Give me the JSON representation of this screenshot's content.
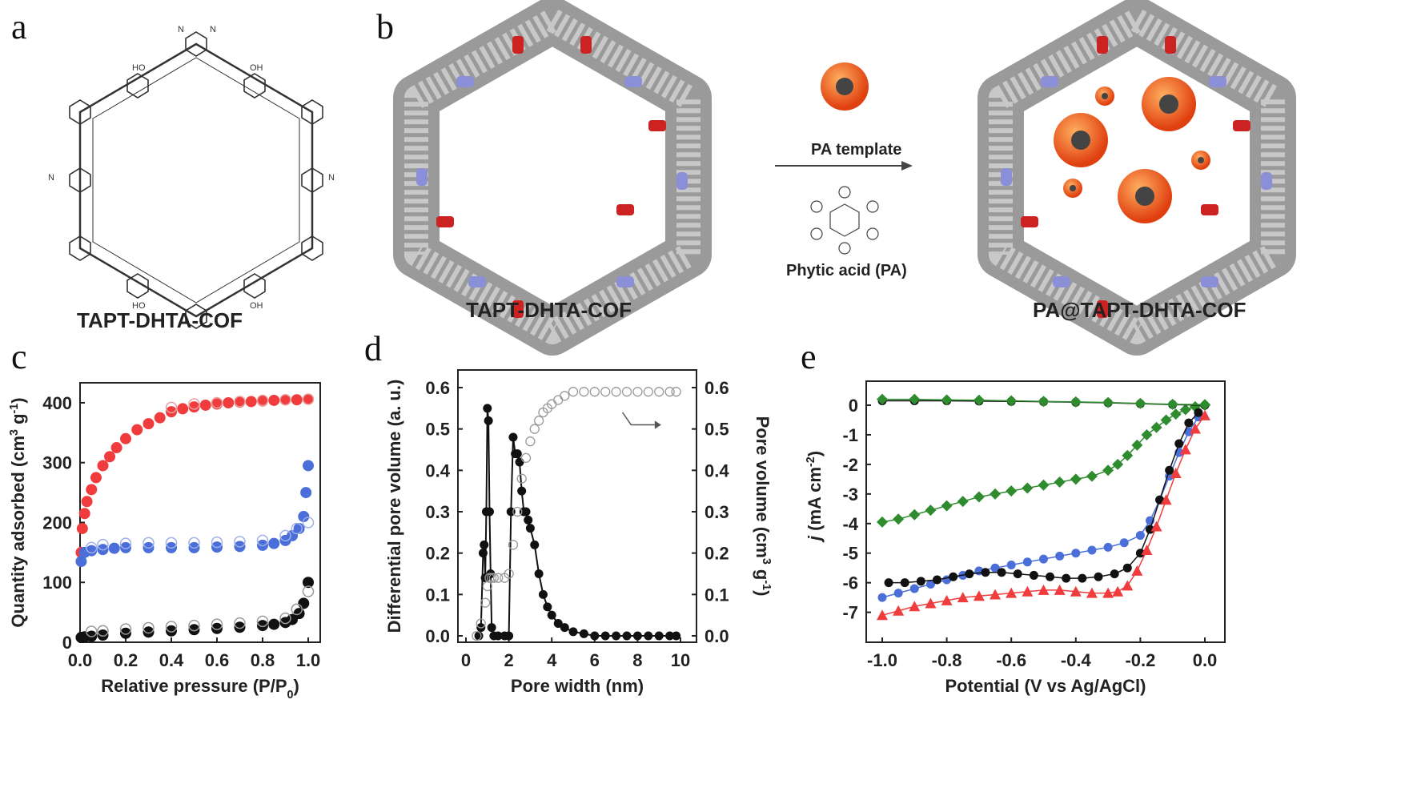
{
  "panels": {
    "a": {
      "letter": "a",
      "caption": "TAPT-DHTA-COF"
    },
    "b": {
      "letter": "b",
      "caption_left": "TAPT-DHTA-COF",
      "caption_right": "PA@TAPT-DHTA-COF",
      "template_label": "PA template",
      "acid_label": "Phytic acid (PA)"
    },
    "c": {
      "letter": "c"
    },
    "d": {
      "letter": "d"
    },
    "e": {
      "letter": "e"
    }
  },
  "colors": {
    "red": "#f03c3c",
    "blue": "#4a6fd8",
    "black": "#111111",
    "green": "#2e8b2e",
    "pink": "#e8a0a0",
    "lightblue": "#a0b0e8",
    "grey": "#999999"
  },
  "chart_data": [
    {
      "id": "c",
      "type": "scatter",
      "xlabel": "Relative pressure (P/P",
      "xlabel_sub": "0",
      "xlabel_end": ")",
      "ylabel": "Quantity adsorbed (cm",
      "ylabel_sup1": "3",
      "ylabel_mid": " g",
      "ylabel_sup2": "-1",
      "ylabel_end": ")",
      "xlim": [
        0,
        1.0
      ],
      "ylim": [
        0,
        420
      ],
      "xticks": [
        "0.0",
        "0.2",
        "0.4",
        "0.6",
        "0.8",
        "1.0"
      ],
      "yticks": [
        "0",
        "100",
        "200",
        "300",
        "400"
      ],
      "series": [
        {
          "color": "red",
          "style": "filled",
          "x": [
            0.005,
            0.01,
            0.02,
            0.03,
            0.05,
            0.07,
            0.1,
            0.13,
            0.16,
            0.2,
            0.25,
            0.3,
            0.35,
            0.4,
            0.45,
            0.5,
            0.55,
            0.6,
            0.65,
            0.7,
            0.75,
            0.8,
            0.85,
            0.9,
            0.95,
            1.0
          ],
          "y": [
            150,
            190,
            215,
            235,
            255,
            275,
            295,
            310,
            325,
            340,
            355,
            365,
            375,
            385,
            390,
            393,
            396,
            398,
            400,
            401,
            402,
            403,
            404,
            405,
            405,
            406
          ]
        },
        {
          "color": "pink",
          "style": "open",
          "x": [
            0.4,
            0.5,
            0.6,
            0.7,
            0.8,
            0.9,
            1.0
          ],
          "y": [
            392,
            398,
            400,
            402,
            404,
            405,
            406
          ]
        },
        {
          "color": "blue",
          "style": "filled",
          "x": [
            0.005,
            0.02,
            0.05,
            0.1,
            0.15,
            0.2,
            0.3,
            0.4,
            0.5,
            0.6,
            0.7,
            0.8,
            0.85,
            0.9,
            0.93,
            0.96,
            0.98,
            0.99,
            1.0
          ],
          "y": [
            135,
            150,
            153,
            155,
            157,
            158,
            158,
            158,
            158,
            159,
            160,
            162,
            165,
            170,
            178,
            190,
            210,
            250,
            295
          ]
        },
        {
          "color": "lightblue",
          "style": "open",
          "x": [
            0.05,
            0.1,
            0.2,
            0.3,
            0.4,
            0.5,
            0.6,
            0.7,
            0.8,
            0.9,
            0.95,
            1.0
          ],
          "y": [
            158,
            163,
            165,
            166,
            166,
            166,
            167,
            168,
            170,
            178,
            190,
            200
          ]
        },
        {
          "color": "black",
          "style": "filled",
          "x": [
            0.005,
            0.02,
            0.05,
            0.1,
            0.2,
            0.3,
            0.4,
            0.5,
            0.6,
            0.7,
            0.8,
            0.85,
            0.9,
            0.93,
            0.96,
            0.98,
            1.0
          ],
          "y": [
            8,
            9,
            10,
            12,
            15,
            17,
            19,
            21,
            23,
            25,
            28,
            30,
            33,
            38,
            48,
            65,
            100
          ]
        },
        {
          "color": "grey",
          "style": "open",
          "x": [
            0.05,
            0.1,
            0.2,
            0.3,
            0.4,
            0.5,
            0.6,
            0.7,
            0.8,
            0.9,
            0.95,
            1.0
          ],
          "y": [
            18,
            19,
            22,
            24,
            26,
            28,
            30,
            32,
            35,
            40,
            55,
            85
          ]
        }
      ]
    },
    {
      "id": "d",
      "type": "line",
      "xlabel": "Pore width (nm)",
      "ylabel": "Differential pore volume (a. u.)",
      "ylabel_right": "Pore volume (cm",
      "ylabel_right_sup1": "3",
      "ylabel_right_mid": " g",
      "ylabel_right_sup2": "-1",
      "ylabel_right_end": ")",
      "xlim": [
        0,
        10
      ],
      "ylim": [
        0,
        0.6
      ],
      "xticks": [
        "0",
        "2",
        "4",
        "6",
        "8",
        "10"
      ],
      "yticks": [
        "0.0",
        "0.1",
        "0.2",
        "0.3",
        "0.4",
        "0.5",
        "0.6"
      ],
      "yticks_right": [
        "0.0",
        "0.1",
        "0.2",
        "0.3",
        "0.4",
        "0.5",
        "0.6"
      ],
      "series": [
        {
          "color": "black",
          "style": "filled",
          "x": [
            0.6,
            0.7,
            0.8,
            0.85,
            0.9,
            0.95,
            1.0,
            1.05,
            1.1,
            1.15,
            1.2,
            1.3,
            1.5,
            1.8,
            2.0,
            2.1,
            2.2,
            2.3,
            2.4,
            2.5,
            2.6,
            2.7,
            2.8,
            2.9,
            3.0,
            3.2,
            3.4,
            3.6,
            3.8,
            4.0,
            4.3,
            4.6,
            5.0,
            5.5,
            6.0,
            6.5,
            7.0,
            7.5,
            8.0,
            8.5,
            9.0,
            9.5,
            9.8
          ],
          "y": [
            0.0,
            0.02,
            0.2,
            0.22,
            0.14,
            0.3,
            0.55,
            0.52,
            0.3,
            0.15,
            0.02,
            0.0,
            0.0,
            0.0,
            0.0,
            0.3,
            0.48,
            0.44,
            0.44,
            0.42,
            0.35,
            0.3,
            0.3,
            0.28,
            0.26,
            0.22,
            0.15,
            0.1,
            0.07,
            0.05,
            0.03,
            0.02,
            0.01,
            0.005,
            0.0,
            0.0,
            0.0,
            0.0,
            0.0,
            0.0,
            0.0,
            0.0,
            0.0
          ]
        },
        {
          "color": "grey",
          "style": "open",
          "axis": "right",
          "x": [
            0.5,
            0.7,
            0.9,
            1.0,
            1.1,
            1.2,
            1.3,
            1.5,
            1.8,
            2.0,
            2.2,
            2.4,
            2.6,
            2.8,
            3.0,
            3.2,
            3.4,
            3.6,
            3.8,
            4.0,
            4.3,
            4.6,
            5.0,
            5.5,
            6.0,
            6.5,
            7.0,
            7.5,
            8.0,
            8.5,
            9.0,
            9.5,
            9.8
          ],
          "y": [
            0.0,
            0.03,
            0.08,
            0.12,
            0.14,
            0.14,
            0.14,
            0.14,
            0.14,
            0.15,
            0.22,
            0.3,
            0.38,
            0.43,
            0.47,
            0.5,
            0.52,
            0.54,
            0.55,
            0.56,
            0.57,
            0.58,
            0.59,
            0.59,
            0.59,
            0.59,
            0.59,
            0.59,
            0.59,
            0.59,
            0.59,
            0.59,
            0.59
          ]
        }
      ]
    },
    {
      "id": "e",
      "type": "line",
      "xlabel": "Potential (V vs Ag/AgCl)",
      "ylabel_italic": "j",
      "ylabel": " (mA cm",
      "ylabel_sup": "-2",
      "ylabel_end": ")",
      "xlim": [
        -1.0,
        0.0
      ],
      "ylim": [
        -7.5,
        0.5
      ],
      "xticks": [
        "-1.0",
        "-0.8",
        "-0.6",
        "-0.4",
        "-0.2",
        "0.0"
      ],
      "yticks": [
        "0",
        "-1",
        "-2",
        "-3",
        "-4",
        "-5",
        "-6",
        "-7"
      ],
      "series": [
        {
          "color": "green",
          "marker": "diamond",
          "x": [
            -1.0,
            -0.95,
            -0.9,
            -0.85,
            -0.8,
            -0.75,
            -0.7,
            -0.65,
            -0.6,
            -0.55,
            -0.5,
            -0.45,
            -0.4,
            -0.35,
            -0.3,
            -0.27,
            -0.24,
            -0.21,
            -0.18,
            -0.15,
            -0.12,
            -0.09,
            -0.06,
            -0.03,
            0.0
          ],
          "y": [
            -3.95,
            -3.85,
            -3.7,
            -3.55,
            -3.4,
            -3.25,
            -3.1,
            -3.0,
            -2.9,
            -2.8,
            -2.7,
            -2.6,
            -2.5,
            -2.4,
            -2.2,
            -2.0,
            -1.7,
            -1.35,
            -1.0,
            -0.75,
            -0.5,
            -0.3,
            -0.15,
            -0.05,
            0.0
          ]
        },
        {
          "color": "blue",
          "marker": "circle",
          "x": [
            -1.0,
            -0.95,
            -0.9,
            -0.85,
            -0.8,
            -0.75,
            -0.7,
            -0.65,
            -0.6,
            -0.55,
            -0.5,
            -0.45,
            -0.4,
            -0.35,
            -0.3,
            -0.25,
            -0.2,
            -0.17,
            -0.14,
            -0.11,
            -0.08,
            -0.05,
            -0.02
          ],
          "y": [
            -6.5,
            -6.35,
            -6.2,
            -6.05,
            -5.9,
            -5.75,
            -5.6,
            -5.5,
            -5.4,
            -5.3,
            -5.2,
            -5.1,
            -5.0,
            -4.9,
            -4.8,
            -4.65,
            -4.4,
            -3.9,
            -3.2,
            -2.4,
            -1.6,
            -0.9,
            -0.4
          ]
        },
        {
          "color": "black",
          "marker": "circle",
          "x": [
            -0.98,
            -0.93,
            -0.88,
            -0.83,
            -0.78,
            -0.73,
            -0.68,
            -0.63,
            -0.58,
            -0.53,
            -0.48,
            -0.43,
            -0.38,
            -0.33,
            -0.28,
            -0.24,
            -0.2,
            -0.17,
            -0.14,
            -0.11,
            -0.08,
            -0.05,
            -0.02
          ],
          "y": [
            -6.0,
            -6.0,
            -5.95,
            -5.9,
            -5.8,
            -5.7,
            -5.65,
            -5.65,
            -5.7,
            -5.75,
            -5.8,
            -5.85,
            -5.85,
            -5.8,
            -5.7,
            -5.5,
            -5.0,
            -4.2,
            -3.2,
            -2.2,
            -1.3,
            -0.6,
            -0.25
          ]
        },
        {
          "color": "red",
          "marker": "triangle",
          "x": [
            -1.0,
            -0.95,
            -0.9,
            -0.85,
            -0.8,
            -0.75,
            -0.7,
            -0.65,
            -0.6,
            -0.55,
            -0.5,
            -0.45,
            -0.4,
            -0.35,
            -0.3,
            -0.27,
            -0.24,
            -0.21,
            -0.18,
            -0.15,
            -0.12,
            -0.09,
            -0.06,
            -0.03,
            0.0
          ],
          "y": [
            -7.1,
            -6.95,
            -6.8,
            -6.7,
            -6.6,
            -6.5,
            -6.45,
            -6.4,
            -6.35,
            -6.3,
            -6.25,
            -6.25,
            -6.3,
            -6.35,
            -6.35,
            -6.3,
            -6.1,
            -5.6,
            -4.9,
            -4.1,
            -3.2,
            -2.3,
            -1.5,
            -0.8,
            -0.35
          ]
        },
        {
          "color": "black",
          "marker": "circle",
          "x": [
            -1.0,
            -0.9,
            -0.8,
            -0.7,
            -0.6,
            -0.5,
            -0.4,
            -0.3,
            -0.2,
            -0.1,
            0.0
          ],
          "y": [
            0.15,
            0.15,
            0.15,
            0.14,
            0.13,
            0.12,
            0.1,
            0.08,
            0.05,
            0.02,
            0.0
          ]
        },
        {
          "color": "green",
          "marker": "diamond",
          "x": [
            -1.0,
            -0.9,
            -0.8,
            -0.7,
            -0.6,
            -0.5,
            -0.4,
            -0.3,
            -0.2,
            -0.1,
            0.0
          ],
          "y": [
            0.2,
            0.2,
            0.18,
            0.17,
            0.15,
            0.13,
            0.11,
            0.09,
            0.06,
            0.03,
            0.02
          ]
        }
      ]
    }
  ]
}
